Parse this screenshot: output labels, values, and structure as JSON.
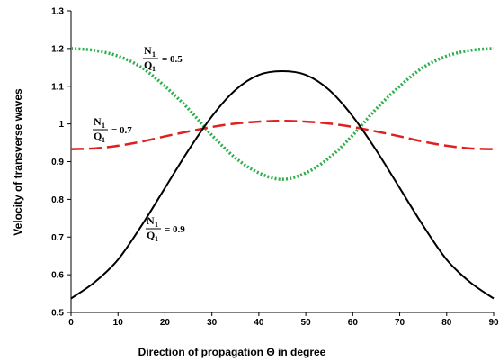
{
  "chart_data": {
    "type": "line",
    "title": "",
    "xlabel": "Direction of propagation Θ in degree",
    "ylabel": "Velocity  of transverse waves",
    "xlim": [
      0,
      90
    ],
    "ylim": [
      0.5,
      1.3
    ],
    "xticks": [
      "0",
      "10",
      "20",
      "30",
      "40",
      "50",
      "60",
      "70",
      "80",
      "90"
    ],
    "yticks": [
      "0.5",
      "0.6",
      "0.7",
      "0.8",
      "0.9",
      "1",
      "1.1",
      "1.2",
      "1.3"
    ],
    "grid": false,
    "legend": "none",
    "x": [
      0,
      5,
      10,
      15,
      20,
      25,
      30,
      35,
      40,
      45,
      50,
      55,
      60,
      65,
      70,
      75,
      80,
      85,
      90
    ],
    "series": [
      {
        "label_num": "N",
        "label_num_sub": "1",
        "label_den": "Q",
        "label_den_sub": "1",
        "label_value": "= 0.5",
        "color": "#2db04b",
        "style": "dotted",
        "values": [
          1.2,
          1.195,
          1.18,
          1.15,
          1.1,
          1.04,
          0.97,
          0.91,
          0.87,
          0.853,
          0.87,
          0.91,
          0.97,
          1.04,
          1.1,
          1.15,
          1.18,
          1.195,
          1.2
        ]
      },
      {
        "label_num": "N",
        "label_num_sub": "1",
        "label_den": "Q",
        "label_den_sub": "1",
        "label_value": "= 0.7",
        "color": "#e02020",
        "style": "dashed",
        "values": [
          0.933,
          0.935,
          0.942,
          0.953,
          0.967,
          0.98,
          0.992,
          1.001,
          1.006,
          1.008,
          1.006,
          1.001,
          0.992,
          0.98,
          0.967,
          0.953,
          0.942,
          0.935,
          0.933
        ]
      },
      {
        "label_num": "N",
        "label_num_sub": "1",
        "label_den": "Q",
        "label_den_sub": "1",
        "label_value": "= 0.9",
        "color": "#000000",
        "style": "solid",
        "values": [
          0.537,
          0.58,
          0.64,
          0.73,
          0.83,
          0.93,
          1.02,
          1.09,
          1.13,
          1.14,
          1.13,
          1.09,
          1.02,
          0.93,
          0.83,
          0.73,
          0.64,
          0.58,
          0.537
        ]
      }
    ]
  }
}
